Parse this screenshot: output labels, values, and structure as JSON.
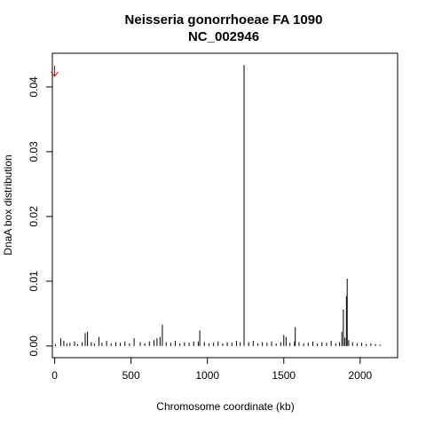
{
  "chart_data": {
    "type": "bar",
    "title": "Neisseria gonorrhoeae FA 1090",
    "subtitle": "NC_002946",
    "xlabel": "Chromosome coordinate (kb)",
    "ylabel": "DnaA box distribution",
    "xlim": [
      -15,
      2245
    ],
    "ylim": [
      -0.0018,
      0.0452
    ],
    "xticks": [
      0,
      500,
      1000,
      1500,
      2000
    ],
    "xtick_labels": [
      "0",
      "500",
      "1000",
      "1500",
      "2000"
    ],
    "yticks": [
      0.0,
      0.01,
      0.02,
      0.03,
      0.04
    ],
    "ytick_labels": [
      "0.00",
      "0.01",
      "0.02",
      "0.03",
      "0.04"
    ],
    "grid": false,
    "legend": "none",
    "marker": {
      "x": 0,
      "label": "origin arrow",
      "color": "#cc0000"
    },
    "bar_color": "#000000",
    "series": [
      {
        "x": [
          5,
          40,
          60,
          80,
          100,
          130,
          150,
          180,
          200,
          215,
          240,
          260,
          290,
          310,
          340,
          370,
          400,
          430,
          460,
          490,
          520,
          560,
          590,
          620,
          650,
          670,
          690,
          705,
          730,
          760,
          790,
          820,
          850,
          880,
          910,
          940,
          950,
          980,
          1010,
          1040,
          1070,
          1100,
          1130,
          1160,
          1190,
          1215,
          1240,
          1270,
          1300,
          1330,
          1360,
          1390,
          1420,
          1450,
          1480,
          1500,
          1515,
          1540,
          1570,
          1575,
          1600,
          1630,
          1660,
          1690,
          1720,
          1750,
          1780,
          1810,
          1840,
          1865,
          1880,
          1890,
          1900,
          1910,
          1915,
          1925,
          1950,
          1980,
          2010,
          2040,
          2070,
          2100,
          2130
        ],
        "values": [
          0.0003,
          0.0012,
          0.0008,
          0.0004,
          0.0005,
          0.0007,
          0.0003,
          0.0006,
          0.002,
          0.0022,
          0.0006,
          0.0004,
          0.0014,
          0.0005,
          0.0008,
          0.0004,
          0.0006,
          0.0005,
          0.0007,
          0.0004,
          0.0012,
          0.0006,
          0.0004,
          0.0007,
          0.0009,
          0.0012,
          0.0014,
          0.0033,
          0.0006,
          0.0005,
          0.0008,
          0.0004,
          0.0006,
          0.0005,
          0.0007,
          0.0007,
          0.0024,
          0.0006,
          0.0004,
          0.0005,
          0.0007,
          0.0004,
          0.0006,
          0.0005,
          0.0008,
          0.0006,
          0.0434,
          0.0006,
          0.0008,
          0.0004,
          0.0006,
          0.0005,
          0.0007,
          0.0004,
          0.0006,
          0.0017,
          0.0014,
          0.0005,
          0.0007,
          0.0029,
          0.0006,
          0.0004,
          0.0005,
          0.0007,
          0.0004,
          0.0006,
          0.0005,
          0.0008,
          0.0004,
          0.0006,
          0.0022,
          0.0056,
          0.0013,
          0.0077,
          0.0104,
          0.0009,
          0.0006,
          0.0004,
          0.0005,
          0.0003,
          0.0004,
          0.0003,
          0.0002
        ]
      }
    ]
  }
}
